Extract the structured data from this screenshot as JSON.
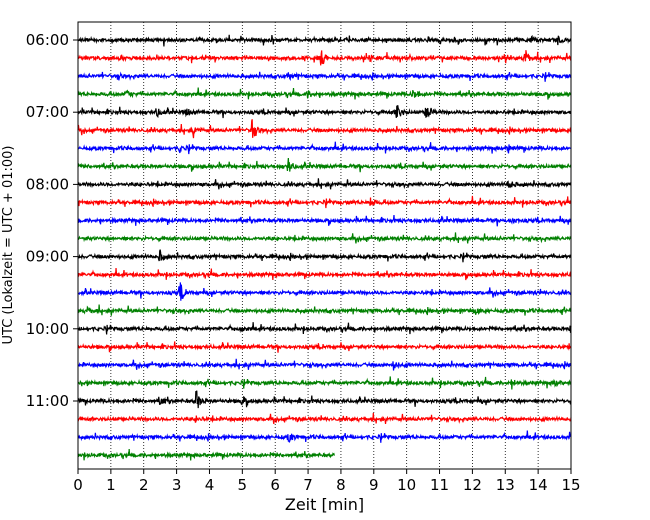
{
  "chart_data": {
    "type": "line",
    "subtype": "helicorder",
    "xlabel": "Zeit  [min]",
    "ylabel": "UTC (Lokalzeit = UTC + 01:00)",
    "xlim": [
      0,
      15
    ],
    "x_ticks": [
      "0",
      "1",
      "2",
      "3",
      "4",
      "5",
      "6",
      "7",
      "8",
      "9",
      "10",
      "11",
      "12",
      "13",
      "14",
      "15"
    ],
    "y_tick_labels": [
      "06:00",
      "07:00",
      "08:00",
      "09:00",
      "10:00",
      "11:00"
    ],
    "start_time": "06:00",
    "minutes_per_line": 15,
    "line_count": 24,
    "last_line_end_min": 7.8,
    "grid": "vertical dotted",
    "trace_colors": [
      "#000000",
      "#ff0000",
      "#0000ff",
      "#008000"
    ],
    "events": [
      {
        "line": 0,
        "t": 14.6,
        "amp": 0.35
      },
      {
        "line": 0,
        "t": 13.8,
        "amp": 0.25
      },
      {
        "line": 1,
        "t": 7.4,
        "amp": 0.9
      },
      {
        "line": 1,
        "t": 13.6,
        "amp": 0.85
      },
      {
        "line": 1,
        "t": 8.9,
        "amp": 0.3
      },
      {
        "line": 2,
        "t": 6.4,
        "amp": 0.4
      },
      {
        "line": 2,
        "t": 1.2,
        "amp": 0.2
      },
      {
        "line": 3,
        "t": 10.2,
        "amp": 0.55
      },
      {
        "line": 3,
        "t": 7.0,
        "amp": 0.35
      },
      {
        "line": 3,
        "t": 1.5,
        "amp": 0.3
      },
      {
        "line": 4,
        "t": 9.7,
        "amp": 0.9
      },
      {
        "line": 4,
        "t": 10.6,
        "amp": 1.0
      },
      {
        "line": 4,
        "t": 2.4,
        "amp": 0.4
      },
      {
        "line": 4,
        "t": 3.3,
        "amp": 0.3
      },
      {
        "line": 5,
        "t": 5.3,
        "amp": 1.0
      },
      {
        "line": 5,
        "t": 3.5,
        "amp": 0.35
      },
      {
        "line": 6,
        "t": 13.1,
        "amp": 0.35
      },
      {
        "line": 6,
        "t": 3.1,
        "amp": 0.3
      },
      {
        "line": 7,
        "t": 6.4,
        "amp": 0.7
      },
      {
        "line": 8,
        "t": 13.1,
        "amp": 0.4
      },
      {
        "line": 9,
        "t": 8.9,
        "amp": 0.4
      },
      {
        "line": 10,
        "t": 13.2,
        "amp": 0.3
      },
      {
        "line": 12,
        "t": 2.5,
        "amp": 0.55
      },
      {
        "line": 14,
        "t": 3.1,
        "amp": 0.9
      },
      {
        "line": 15,
        "t": 0.3,
        "amp": 0.3
      },
      {
        "line": 15,
        "t": 12.1,
        "amp": 0.25
      },
      {
        "line": 16,
        "t": 15.0,
        "amp": 0.45
      },
      {
        "line": 16,
        "t": 5.0,
        "amp": 0.2
      },
      {
        "line": 18,
        "t": 9.6,
        "amp": 0.4
      },
      {
        "line": 19,
        "t": 13.2,
        "amp": 0.35
      },
      {
        "line": 19,
        "t": 14.5,
        "amp": 0.25
      },
      {
        "line": 20,
        "t": 3.6,
        "amp": 1.0
      },
      {
        "line": 20,
        "t": 5.0,
        "amp": 0.4
      },
      {
        "line": 20,
        "t": 2.5,
        "amp": 0.35
      },
      {
        "line": 21,
        "t": 3.6,
        "amp": 0.25
      },
      {
        "line": 22,
        "t": 6.4,
        "amp": 0.55
      }
    ]
  }
}
